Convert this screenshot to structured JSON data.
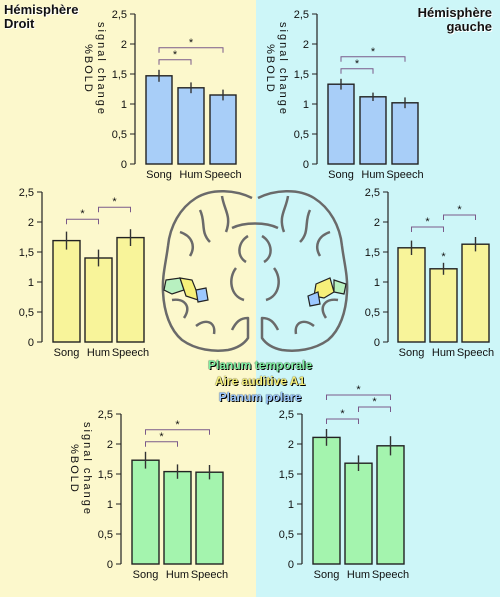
{
  "labels": {
    "hemisphere_left": [
      "Hémisphère",
      "Droit"
    ],
    "hemisphere_right": [
      "Hémisphère",
      "gauche"
    ],
    "legend": {
      "planum_temporale": "Planum temporale",
      "aire_auditive": "Aire auditive A1",
      "planum_polare": "Planum polare"
    },
    "ylabel_lines": [
      "%BOLD",
      "signal change"
    ]
  },
  "colors": {
    "bg_left": "#fcf8cc",
    "bg_right": "#cdf6f8",
    "blue_bar": "#a8cef8",
    "yellow_bar": "#f8f49a",
    "green_bar": "#a4f4ae",
    "axis": "#222222",
    "sig_line": "#7a5a8a",
    "legend_green": "#7ef0a2",
    "legend_yellow": "#f6f07a",
    "legend_blue": "#9cc8ff"
  },
  "chart_data": [
    {
      "id": "chart-right-hemi-planum-polare",
      "type": "bar",
      "color": "#a8cef8",
      "categories": [
        "Song",
        "Hum",
        "Speech"
      ],
      "values": [
        1.47,
        1.27,
        1.15
      ],
      "errors": [
        0.1,
        0.09,
        0.09
      ],
      "ylim": [
        0,
        2.5
      ],
      "yticks": [
        "0",
        "0,5",
        "1",
        "1,5",
        "2",
        "2,5"
      ],
      "ylabel": [
        "%BOLD",
        "signal change"
      ],
      "significance": [
        {
          "from": 0,
          "to": 1,
          "mark": "*"
        },
        {
          "from": 0,
          "to": 2,
          "mark": "*"
        }
      ]
    },
    {
      "id": "chart-left-hemi-planum-polare",
      "type": "bar",
      "color": "#a8cef8",
      "categories": [
        "Song",
        "Hum",
        "Speech"
      ],
      "values": [
        1.33,
        1.12,
        1.02
      ],
      "errors": [
        0.09,
        0.07,
        0.09
      ],
      "ylim": [
        0,
        2.5
      ],
      "yticks": [
        "0",
        "0,5",
        "1",
        "1,5",
        "2",
        "2,5"
      ],
      "ylabel": [
        "%BOLD",
        "signal change"
      ],
      "significance": [
        {
          "from": 0,
          "to": 1,
          "mark": "*"
        },
        {
          "from": 0,
          "to": 2,
          "mark": "*"
        }
      ]
    },
    {
      "id": "chart-right-hemi-a1",
      "type": "bar",
      "color": "#f8f49a",
      "categories": [
        "Song",
        "Hum",
        "Speech"
      ],
      "values": [
        1.69,
        1.4,
        1.74
      ],
      "errors": [
        0.15,
        0.14,
        0.14
      ],
      "ylim": [
        0,
        2.5
      ],
      "yticks": [
        "0",
        "0,5",
        "1",
        "1,5",
        "2",
        "2,5"
      ],
      "significance": [
        {
          "from": 0,
          "to": 1,
          "mark": "*"
        },
        {
          "from": 1,
          "to": 2,
          "mark": "*"
        }
      ]
    },
    {
      "id": "chart-left-hemi-a1",
      "type": "bar",
      "color": "#f8f49a",
      "categories": [
        "Song",
        "Hum",
        "Speech"
      ],
      "values": [
        1.57,
        1.22,
        1.63
      ],
      "errors": [
        0.12,
        0.1,
        0.12
      ],
      "ylim": [
        0,
        2.5
      ],
      "yticks": [
        "0",
        "0,5",
        "1",
        "1,5",
        "2",
        "2,5"
      ],
      "significance": [
        {
          "from": 0,
          "to": 1,
          "mark": "*"
        },
        {
          "from": 1,
          "to": 2,
          "mark": "*"
        }
      ],
      "bar_marks": [
        {
          "index": 1,
          "mark": "*"
        }
      ]
    },
    {
      "id": "chart-right-hemi-planum-temporale",
      "type": "bar",
      "color": "#a4f4ae",
      "categories": [
        "Song",
        "Hum",
        "Speech"
      ],
      "values": [
        1.73,
        1.54,
        1.53
      ],
      "errors": [
        0.14,
        0.12,
        0.12
      ],
      "ylim": [
        0,
        2.5
      ],
      "yticks": [
        "0",
        "0,5",
        "1",
        "1,5",
        "2",
        "2,5"
      ],
      "ylabel": [
        "%BOLD",
        "signal change"
      ],
      "significance": [
        {
          "from": 0,
          "to": 1,
          "mark": "*"
        },
        {
          "from": 0,
          "to": 2,
          "mark": "*"
        }
      ]
    },
    {
      "id": "chart-left-hemi-planum-temporale",
      "type": "bar",
      "color": "#a4f4ae",
      "categories": [
        "Song",
        "Hum",
        "Speech"
      ],
      "values": [
        2.11,
        1.68,
        1.97
      ],
      "errors": [
        0.14,
        0.13,
        0.16
      ],
      "ylim": [
        0,
        2.5
      ],
      "yticks": [
        "0",
        "0,5",
        "1",
        "1,5",
        "2",
        "2,5"
      ],
      "significance": [
        {
          "from": 0,
          "to": 1,
          "mark": "*"
        },
        {
          "from": 0,
          "to": 2,
          "mark": "*"
        },
        {
          "from": 1,
          "to": 2,
          "mark": "*"
        }
      ]
    }
  ]
}
